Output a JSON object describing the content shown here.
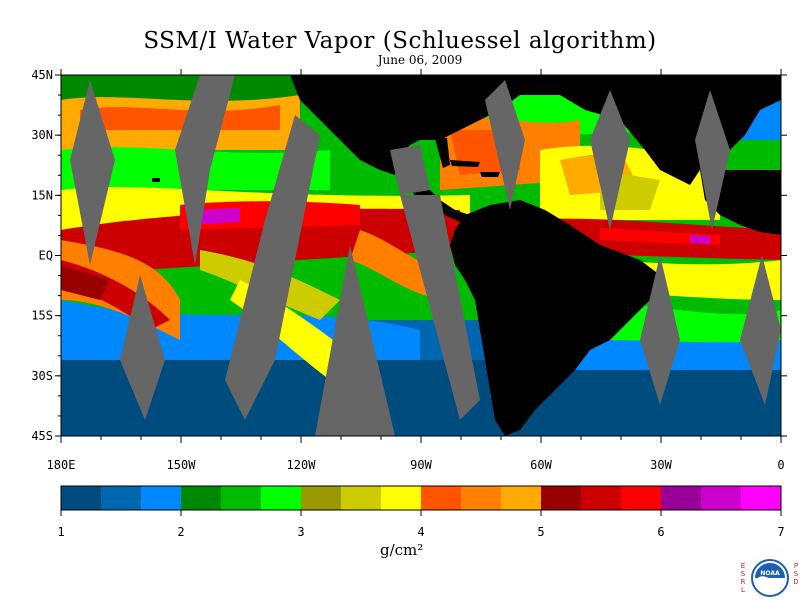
{
  "title": "SSM/I Water Vapor (Schluessel algorithm)",
  "date": "June 06, 2009",
  "map": {
    "lat_labels": [
      "45N",
      "30N",
      "15N",
      "EQ",
      "15S",
      "30S",
      "45S"
    ],
    "lat_values": [
      45,
      30,
      15,
      0,
      -15,
      -30,
      -45
    ],
    "lon_labels": [
      "180E",
      "150W",
      "120W",
      "90W",
      "60W",
      "30W",
      "0"
    ],
    "lon_values": [
      -180,
      -150,
      -120,
      -90,
      -60,
      -30,
      0
    ],
    "lat_range": [
      -45,
      45
    ],
    "lon_range": [
      -180,
      0
    ],
    "land_color": "#000000",
    "missing_swath_color": "#666666"
  },
  "colorbar": {
    "tick_labels": [
      "1",
      "2",
      "3",
      "4",
      "5",
      "6",
      "7"
    ],
    "range": [
      1,
      7
    ],
    "units": "g/cm²",
    "colors": [
      "#004c7e",
      "#0066b0",
      "#0088ff",
      "#008800",
      "#00bb00",
      "#00ff00",
      "#999900",
      "#cccc00",
      "#ffff00",
      "#ff5500",
      "#ff7f00",
      "#ffaa00",
      "#990000",
      "#cc0000",
      "#ff0000",
      "#990099",
      "#cc00cc",
      "#ff00ff"
    ]
  },
  "logo": {
    "left_letters": [
      "E",
      "S",
      "R",
      "L"
    ],
    "right_letters": [
      "P",
      "S",
      "D"
    ],
    "emblem_text": "NOAA",
    "ring_color": "#1e5fb4"
  }
}
